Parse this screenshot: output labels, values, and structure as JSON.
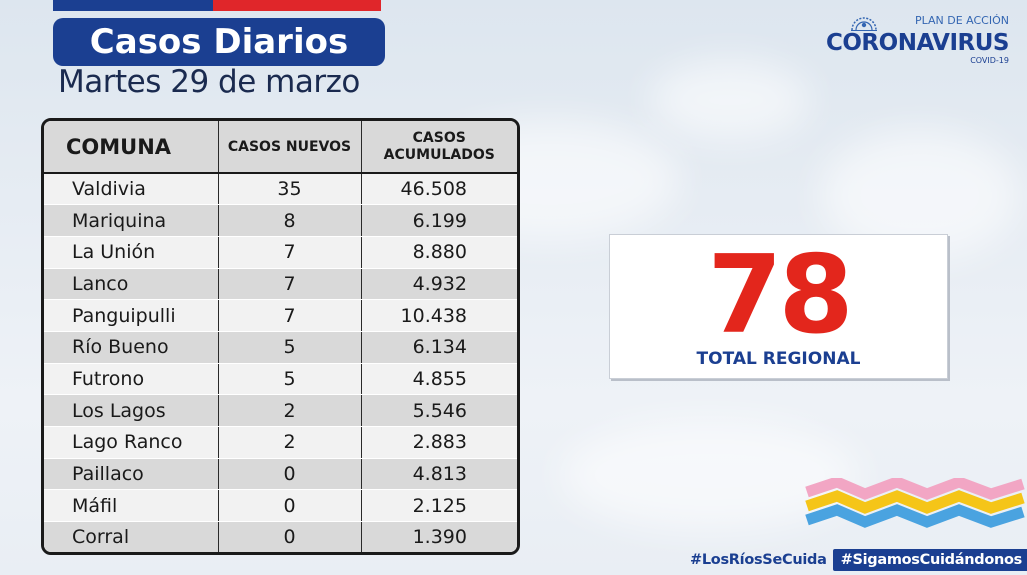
{
  "header": {
    "title": "Casos Diarios",
    "date": "Martes 29 de marzo"
  },
  "logo": {
    "plan": "PLAN DE ACCIÓN",
    "name": "CORONAVIRUS",
    "sub": "COVID-19"
  },
  "table": {
    "headers": {
      "comuna": "COMUNA",
      "nuevos": "CASOS NUEVOS",
      "acumulados_1": "CASOS",
      "acumulados_2": "ACUMULADOS"
    },
    "rows": [
      {
        "comuna": "Valdivia",
        "nuevos": "35",
        "acumulados": "46.508"
      },
      {
        "comuna": "Mariquina",
        "nuevos": "8",
        "acumulados": "6.199"
      },
      {
        "comuna": "La Unión",
        "nuevos": "7",
        "acumulados": "8.880"
      },
      {
        "comuna": "Lanco",
        "nuevos": "7",
        "acumulados": "4.932"
      },
      {
        "comuna": "Panguipulli",
        "nuevos": "7",
        "acumulados": "10.438"
      },
      {
        "comuna": "Río Bueno",
        "nuevos": "5",
        "acumulados": "6.134"
      },
      {
        "comuna": "Futrono",
        "nuevos": "5",
        "acumulados": "4.855"
      },
      {
        "comuna": "Los Lagos",
        "nuevos": "2",
        "acumulados": "5.546"
      },
      {
        "comuna": "Lago Ranco",
        "nuevos": "2",
        "acumulados": "2.883"
      },
      {
        "comuna": "Paillaco",
        "nuevos": "0",
        "acumulados": "4.813"
      },
      {
        "comuna": "Máfil",
        "nuevos": "0",
        "acumulados": "2.125"
      },
      {
        "comuna": "Corral",
        "nuevos": "0",
        "acumulados": "1.390"
      }
    ]
  },
  "total": {
    "value": "78",
    "label": "TOTAL REGIONAL"
  },
  "hashtags": {
    "first": "#LosRíosSeCuida",
    "second": "#SigamosCuidándonos"
  },
  "colors": {
    "brand_blue": "#1b3f91",
    "accent_red": "#e3261c",
    "ribbon_pink": "#f2a6c4",
    "ribbon_yellow": "#f5c518",
    "ribbon_blue": "#4aa3e0"
  }
}
